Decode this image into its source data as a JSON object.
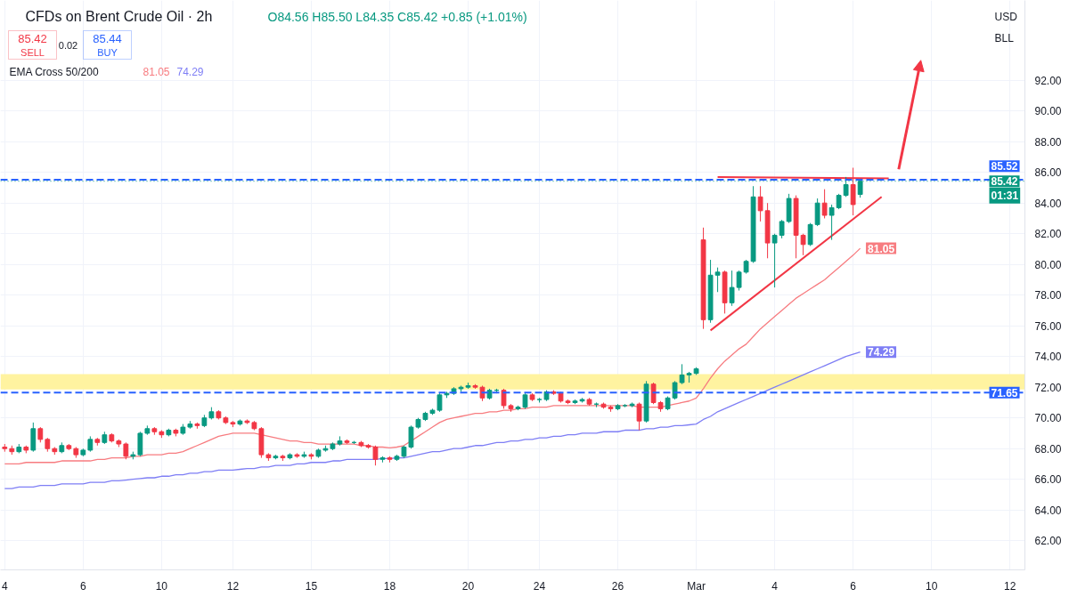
{
  "chart_data": {
    "type": "candlestick",
    "title": "CFDs on Brent Crude Oil · 2h",
    "subtitle": "O84.56 H85.50 L84.35 C85.42 +0.85 (+1.01%)",
    "annotations": [
      "85.42",
      "SELL",
      "0.02",
      "85.44",
      "BUY",
      "EMA Cross 50/200",
      "USD",
      "BLL",
      "01:31",
      "81.05",
      "74.29"
    ],
    "categories": [
      "4",
      null,
      null,
      null,
      null,
      null,
      null,
      null,
      null,
      null,
      null,
      "6",
      null,
      null,
      null,
      null,
      null,
      null,
      null,
      null,
      null,
      null,
      "10",
      null,
      null,
      null,
      null,
      null,
      null,
      null,
      null,
      null,
      "12",
      null,
      null,
      null,
      null,
      null,
      null,
      null,
      null,
      null,
      null,
      "15",
      null,
      null,
      null,
      null,
      null,
      null,
      null,
      null,
      null,
      null,
      "18",
      null,
      null,
      null,
      null,
      null,
      null,
      null,
      null,
      null,
      null,
      "20",
      null,
      null,
      null,
      null,
      null,
      null,
      null,
      null,
      null,
      "24",
      null,
      null,
      null,
      null,
      null,
      null,
      null,
      null,
      null,
      null,
      "26",
      null,
      null,
      null,
      null,
      null,
      null,
      null,
      null,
      null,
      null,
      "Mar",
      null,
      null,
      null,
      null,
      null,
      null,
      null,
      null,
      null,
      null,
      "4",
      null,
      null,
      null,
      null,
      null,
      null,
      null,
      null,
      null,
      null,
      "6",
      null,
      null,
      null,
      null,
      null,
      null,
      null,
      null,
      null,
      null,
      "10",
      null,
      null,
      null,
      null,
      null,
      null,
      null,
      null,
      null,
      null,
      "12",
      null,
      null
    ],
    "ohlc": [
      [
        68.1,
        68.3,
        67.8,
        68.0
      ],
      [
        68.0,
        68.2,
        67.6,
        67.8
      ],
      [
        67.8,
        68.3,
        67.7,
        68.1
      ],
      [
        68.1,
        68.2,
        67.7,
        67.9
      ],
      [
        67.9,
        69.7,
        67.8,
        69.3
      ],
      [
        69.3,
        69.4,
        68.4,
        68.6
      ],
      [
        68.6,
        68.7,
        67.8,
        68.0
      ],
      [
        68.0,
        68.1,
        67.6,
        67.8
      ],
      [
        67.8,
        68.4,
        67.7,
        68.2
      ],
      [
        68.2,
        68.3,
        67.9,
        68.0
      ],
      [
        68.0,
        68.1,
        67.4,
        67.6
      ],
      [
        67.6,
        68.0,
        67.5,
        67.9
      ],
      [
        67.9,
        68.8,
        67.8,
        68.6
      ],
      [
        68.6,
        68.7,
        68.2,
        68.4
      ],
      [
        68.4,
        69.1,
        68.3,
        68.9
      ],
      [
        68.9,
        69.0,
        68.4,
        68.5
      ],
      [
        68.5,
        68.6,
        68.1,
        68.3
      ],
      [
        68.3,
        68.4,
        67.3,
        67.5
      ],
      [
        67.5,
        67.8,
        67.3,
        67.6
      ],
      [
        67.6,
        69.1,
        67.5,
        69.0
      ],
      [
        69.0,
        69.5,
        68.9,
        69.3
      ],
      [
        69.3,
        69.4,
        68.9,
        69.1
      ],
      [
        69.1,
        69.2,
        68.7,
        68.9
      ],
      [
        68.9,
        69.3,
        68.8,
        69.2
      ],
      [
        69.2,
        69.3,
        68.8,
        69.0
      ],
      [
        69.0,
        69.6,
        68.9,
        69.4
      ],
      [
        69.4,
        69.8,
        69.3,
        69.6
      ],
      [
        69.6,
        69.7,
        69.3,
        69.5
      ],
      [
        69.5,
        70.2,
        69.4,
        70.0
      ],
      [
        70.0,
        70.7,
        69.9,
        70.4
      ],
      [
        70.4,
        70.5,
        69.9,
        70.0
      ],
      [
        70.0,
        70.1,
        69.6,
        69.7
      ],
      [
        69.7,
        69.8,
        69.4,
        69.6
      ],
      [
        69.6,
        69.9,
        69.5,
        69.8
      ],
      [
        69.8,
        69.9,
        69.6,
        69.7
      ],
      [
        69.7,
        69.8,
        69.2,
        69.3
      ],
      [
        69.3,
        69.4,
        67.4,
        67.6
      ],
      [
        67.6,
        67.7,
        67.2,
        67.4
      ],
      [
        67.4,
        67.6,
        67.3,
        67.5
      ],
      [
        67.5,
        67.6,
        67.2,
        67.4
      ],
      [
        67.4,
        67.7,
        67.3,
        67.6
      ],
      [
        67.6,
        67.7,
        67.4,
        67.5
      ],
      [
        67.5,
        67.8,
        67.4,
        67.6
      ],
      [
        67.6,
        67.7,
        67.3,
        67.5
      ],
      [
        67.5,
        68.0,
        67.4,
        67.9
      ],
      [
        67.9,
        68.2,
        67.8,
        68.0
      ],
      [
        68.0,
        68.4,
        67.9,
        68.3
      ],
      [
        68.3,
        68.8,
        68.2,
        68.5
      ],
      [
        68.5,
        68.6,
        68.3,
        68.4
      ],
      [
        68.4,
        68.5,
        68.3,
        68.4
      ],
      [
        68.4,
        68.5,
        68.1,
        68.2
      ],
      [
        68.2,
        68.3,
        68.0,
        68.1
      ],
      [
        68.1,
        68.2,
        66.9,
        67.3
      ],
      [
        67.3,
        67.5,
        67.1,
        67.4
      ],
      [
        67.4,
        67.5,
        67.1,
        67.3
      ],
      [
        67.3,
        67.6,
        67.2,
        67.5
      ],
      [
        67.5,
        68.2,
        67.4,
        68.1
      ],
      [
        68.1,
        69.5,
        68.0,
        69.4
      ],
      [
        69.4,
        70.0,
        69.3,
        69.9
      ],
      [
        69.9,
        70.4,
        69.8,
        70.3
      ],
      [
        70.3,
        70.6,
        70.2,
        70.5
      ],
      [
        70.5,
        71.6,
        70.4,
        71.5
      ],
      [
        71.5,
        71.7,
        71.3,
        71.6
      ],
      [
        71.6,
        72.0,
        71.5,
        71.9
      ],
      [
        71.9,
        72.1,
        71.7,
        72.0
      ],
      [
        72.0,
        72.3,
        71.9,
        72.1
      ],
      [
        72.1,
        72.2,
        71.9,
        72.0
      ],
      [
        72.0,
        72.1,
        71.1,
        71.3
      ],
      [
        71.3,
        71.9,
        71.2,
        71.8
      ],
      [
        71.8,
        71.9,
        71.6,
        71.8
      ],
      [
        71.8,
        71.9,
        70.6,
        70.8
      ],
      [
        70.8,
        70.9,
        70.4,
        70.6
      ],
      [
        70.6,
        70.8,
        70.5,
        70.7
      ],
      [
        70.7,
        71.6,
        70.6,
        71.5
      ],
      [
        71.5,
        71.6,
        71.1,
        71.2
      ],
      [
        71.2,
        71.3,
        71.0,
        71.2
      ],
      [
        71.2,
        71.8,
        71.1,
        71.7
      ],
      [
        71.7,
        71.8,
        71.5,
        71.6
      ],
      [
        71.6,
        71.7,
        71.0,
        71.1
      ],
      [
        71.1,
        71.2,
        70.9,
        71.0
      ],
      [
        71.0,
        71.2,
        70.9,
        71.1
      ],
      [
        71.1,
        71.3,
        71.0,
        71.2
      ],
      [
        71.2,
        71.3,
        70.8,
        70.9
      ],
      [
        70.9,
        71.0,
        70.7,
        70.9
      ],
      [
        70.9,
        71.0,
        70.6,
        70.7
      ],
      [
        70.7,
        70.8,
        70.4,
        70.6
      ],
      [
        70.6,
        70.9,
        70.5,
        70.8
      ],
      [
        70.8,
        70.9,
        70.7,
        70.8
      ],
      [
        70.8,
        71.0,
        70.7,
        70.9
      ],
      [
        70.9,
        71.0,
        69.2,
        69.8
      ],
      [
        69.8,
        72.4,
        69.7,
        72.2
      ],
      [
        72.2,
        72.3,
        70.9,
        71.0
      ],
      [
        71.0,
        71.1,
        70.4,
        70.6
      ],
      [
        70.6,
        71.4,
        70.5,
        71.3
      ],
      [
        71.3,
        72.4,
        71.2,
        72.3
      ],
      [
        72.3,
        73.5,
        72.2,
        72.8
      ],
      [
        72.8,
        73.0,
        72.3,
        72.9
      ],
      [
        72.9,
        73.3,
        72.8,
        73.2
      ],
      [
        81.6,
        82.4,
        75.8,
        76.4
      ],
      [
        76.4,
        80.3,
        76.2,
        79.3
      ],
      [
        79.3,
        79.8,
        78.2,
        79.5
      ],
      [
        79.5,
        79.6,
        76.8,
        77.5
      ],
      [
        77.5,
        79.6,
        77.3,
        78.5
      ],
      [
        78.5,
        79.6,
        78.3,
        79.5
      ],
      [
        79.5,
        80.3,
        79.4,
        80.2
      ],
      [
        80.2,
        85.1,
        80.1,
        84.4
      ],
      [
        84.4,
        85.1,
        82.8,
        83.5
      ],
      [
        83.5,
        84.0,
        80.4,
        81.4
      ],
      [
        81.4,
        82.0,
        78.5,
        81.9
      ],
      [
        81.9,
        82.9,
        81.7,
        82.8
      ],
      [
        82.8,
        84.6,
        82.7,
        84.3
      ],
      [
        84.3,
        84.5,
        80.4,
        81.9
      ],
      [
        81.9,
        82.0,
        80.6,
        81.3
      ],
      [
        81.3,
        82.7,
        81.2,
        82.6
      ],
      [
        82.6,
        84.3,
        82.5,
        84.0
      ],
      [
        84.0,
        84.9,
        83.0,
        83.2
      ],
      [
        83.2,
        83.9,
        81.6,
        83.7
      ],
      [
        83.7,
        84.6,
        83.6,
        84.5
      ],
      [
        84.5,
        85.7,
        84.4,
        85.2
      ],
      [
        85.2,
        86.3,
        83.2,
        83.9
      ],
      [
        84.56,
        85.5,
        84.35,
        85.42
      ],
      null,
      null,
      null,
      null,
      null,
      null,
      null,
      null,
      null,
      null,
      null,
      null,
      null,
      null,
      null,
      null,
      null,
      null,
      null,
      null,
      null,
      null,
      null
    ],
    "series": [
      {
        "type": "line",
        "color": "#f77c80",
        "values": [
          67.0,
          67.0,
          67.0,
          67.1,
          67.1,
          67.1,
          67.1,
          67.1,
          67.2,
          67.2,
          67.2,
          67.2,
          67.2,
          67.3,
          67.3,
          67.4,
          67.4,
          67.4,
          67.5,
          67.5,
          67.6,
          67.6,
          67.6,
          67.7,
          67.7,
          67.8,
          68.0,
          68.2,
          68.4,
          68.6,
          68.8,
          68.9,
          69.0,
          69.0,
          69.0,
          69.0,
          68.9,
          68.8,
          68.7,
          68.6,
          68.5,
          68.5,
          68.4,
          68.4,
          68.3,
          68.3,
          68.3,
          68.3,
          68.3,
          68.3,
          68.2,
          68.2,
          68.1,
          68.1,
          68.05,
          68.1,
          68.2,
          68.5,
          68.8,
          69.1,
          69.4,
          69.7,
          69.9,
          70.0,
          70.1,
          70.2,
          70.3,
          70.3,
          70.4,
          70.4,
          70.5,
          70.5,
          70.6,
          70.6,
          70.7,
          70.7,
          70.7,
          70.8,
          70.8,
          70.8,
          70.8,
          70.8,
          70.8,
          70.8,
          70.8,
          70.8,
          70.8,
          70.8,
          70.8,
          70.7,
          70.7,
          70.7,
          70.7,
          70.8,
          70.9,
          71.0,
          71.1,
          71.3,
          71.9,
          72.6,
          73.2,
          73.7,
          74.1,
          74.5,
          74.8,
          75.3,
          75.8,
          76.2,
          76.6,
          77.0,
          77.4,
          77.8,
          78.1,
          78.4,
          78.7,
          79.0,
          79.4,
          79.8,
          80.2,
          80.6,
          81.05,
          null,
          null,
          null,
          null,
          null,
          null,
          null,
          null,
          null,
          null,
          null,
          null,
          null,
          null,
          null,
          null,
          null,
          null,
          null,
          null,
          null,
          null,
          null
        ],
        "value_labels": [
          null,
          null,
          null,
          null,
          null,
          null,
          null,
          null,
          null,
          null,
          null,
          null,
          null,
          null,
          null,
          null,
          null,
          null,
          null,
          null,
          null,
          null,
          null,
          null,
          null,
          null,
          null,
          null,
          null,
          null,
          null,
          null,
          null,
          null,
          null,
          null,
          null,
          null,
          null,
          null,
          null,
          null,
          null,
          null,
          null,
          null,
          null,
          null,
          null,
          null,
          null,
          null,
          null,
          null,
          null,
          null,
          null,
          null,
          null,
          null,
          null,
          null,
          null,
          null,
          null,
          null,
          null,
          null,
          null,
          null,
          null,
          null,
          null,
          null,
          null,
          null,
          null,
          null,
          null,
          null,
          null,
          null,
          null,
          null,
          null,
          null,
          null,
          null,
          null,
          null,
          null,
          null,
          null,
          null,
          null,
          null,
          null,
          null,
          null,
          null,
          null,
          null,
          null,
          null,
          null,
          null,
          null,
          null,
          null,
          null,
          null,
          null,
          null,
          null,
          null,
          null,
          null,
          null,
          null,
          null,
          "81.05",
          null,
          null,
          null,
          null,
          null,
          null,
          null,
          null,
          null,
          null,
          null,
          null,
          null,
          null,
          null,
          null,
          null,
          null,
          null,
          null,
          null,
          null,
          null
        ]
      },
      {
        "type": "line",
        "color": "#7e7ef5",
        "values": [
          65.4,
          65.4,
          65.5,
          65.5,
          65.5,
          65.6,
          65.6,
          65.6,
          65.7,
          65.7,
          65.7,
          65.7,
          65.8,
          65.8,
          65.8,
          65.9,
          65.9,
          65.95,
          66.0,
          66.05,
          66.1,
          66.1,
          66.2,
          66.2,
          66.3,
          66.3,
          66.4,
          66.4,
          66.5,
          66.5,
          66.6,
          66.6,
          66.6,
          66.65,
          66.7,
          66.7,
          66.8,
          66.8,
          66.9,
          66.9,
          66.9,
          67.0,
          67.0,
          67.1,
          67.1,
          67.1,
          67.2,
          67.2,
          67.3,
          67.3,
          67.3,
          67.3,
          67.3,
          67.35,
          67.35,
          67.4,
          67.4,
          67.5,
          67.6,
          67.7,
          67.8,
          67.8,
          67.9,
          68.0,
          68.0,
          68.1,
          68.2,
          68.2,
          68.3,
          68.4,
          68.4,
          68.5,
          68.5,
          68.6,
          68.6,
          68.7,
          68.7,
          68.8,
          68.8,
          68.9,
          68.9,
          69.0,
          69.0,
          69.0,
          69.1,
          69.1,
          69.1,
          69.2,
          69.2,
          69.2,
          69.3,
          69.3,
          69.4,
          69.4,
          69.5,
          69.5,
          69.55,
          69.6,
          69.9,
          70.1,
          70.4,
          70.6,
          70.8,
          71.0,
          71.2,
          71.4,
          71.6,
          71.8,
          72.0,
          72.2,
          72.4,
          72.6,
          72.8,
          73.0,
          73.2,
          73.4,
          73.6,
          73.8,
          74.0,
          74.15,
          74.29,
          null,
          null,
          null,
          null,
          null,
          null,
          null,
          null,
          null,
          null,
          null,
          null,
          null,
          null,
          null,
          null,
          null,
          null,
          null,
          null,
          null,
          null,
          null
        ],
        "value_labels": [
          null,
          null,
          null,
          null,
          null,
          null,
          null,
          null,
          null,
          null,
          null,
          null,
          null,
          null,
          null,
          null,
          null,
          null,
          null,
          null,
          null,
          null,
          null,
          null,
          null,
          null,
          null,
          null,
          null,
          null,
          null,
          null,
          null,
          null,
          null,
          null,
          null,
          null,
          null,
          null,
          null,
          null,
          null,
          null,
          null,
          null,
          null,
          null,
          null,
          null,
          null,
          null,
          null,
          null,
          null,
          null,
          null,
          null,
          null,
          null,
          null,
          null,
          null,
          null,
          null,
          null,
          null,
          null,
          null,
          null,
          null,
          null,
          null,
          null,
          null,
          null,
          null,
          null,
          null,
          null,
          null,
          null,
          null,
          null,
          null,
          null,
          null,
          null,
          null,
          null,
          null,
          null,
          null,
          null,
          null,
          null,
          null,
          null,
          null,
          null,
          null,
          null,
          null,
          null,
          null,
          null,
          null,
          null,
          null,
          null,
          null,
          null,
          null,
          null,
          null,
          null,
          null,
          null,
          null,
          null,
          "74.29",
          null,
          null,
          null,
          null,
          null,
          null,
          null,
          null,
          null,
          null,
          null,
          null,
          null,
          null,
          null,
          null,
          null,
          null,
          null,
          null,
          null,
          null,
          null
        ]
      },
      {
        "type": "line",
        "color": "#f23645",
        "values": [
          null,
          null,
          null,
          null,
          null,
          null,
          null,
          null,
          null,
          null,
          null,
          null,
          null,
          null,
          null,
          null,
          null,
          null,
          null,
          null,
          null,
          null,
          null,
          null,
          null,
          null,
          null,
          null,
          null,
          null,
          null,
          null,
          null,
          null,
          null,
          null,
          null,
          null,
          null,
          null,
          null,
          null,
          null,
          null,
          null,
          null,
          null,
          null,
          null,
          null,
          null,
          null,
          null,
          null,
          null,
          null,
          null,
          null,
          null,
          null,
          null,
          null,
          null,
          null,
          null,
          null,
          null,
          null,
          null,
          null,
          null,
          null,
          null,
          null,
          null,
          null,
          null,
          null,
          null,
          null,
          null,
          null,
          null,
          null,
          null,
          null,
          null,
          null,
          null,
          null,
          null,
          null,
          null,
          null,
          null,
          null,
          null,
          null,
          null,
          75.7,
          null,
          null,
          null,
          null,
          null,
          null,
          null,
          null,
          null,
          null,
          null,
          null,
          null,
          null,
          null,
          null,
          null,
          null,
          null,
          null,
          null,
          null,
          null,
          84.4,
          null,
          null,
          null,
          null,
          null,
          null,
          null,
          null,
          null,
          null,
          null,
          null,
          null,
          null,
          null,
          null,
          null,
          null,
          null,
          null
        ]
      },
      {
        "type": "line",
        "color": "#f23645",
        "values": [
          null,
          null,
          null,
          null,
          null,
          null,
          null,
          null,
          null,
          null,
          null,
          null,
          null,
          null,
          null,
          null,
          null,
          null,
          null,
          null,
          null,
          null,
          null,
          null,
          null,
          null,
          null,
          null,
          null,
          null,
          null,
          null,
          null,
          null,
          null,
          null,
          null,
          null,
          null,
          null,
          null,
          null,
          null,
          null,
          null,
          null,
          null,
          null,
          null,
          null,
          null,
          null,
          null,
          null,
          null,
          null,
          null,
          null,
          null,
          null,
          null,
          null,
          null,
          null,
          null,
          null,
          null,
          null,
          null,
          null,
          null,
          null,
          null,
          null,
          null,
          null,
          null,
          null,
          null,
          null,
          null,
          null,
          null,
          null,
          null,
          null,
          null,
          null,
          null,
          null,
          null,
          null,
          null,
          null,
          null,
          null,
          null,
          null,
          null,
          null,
          85.7,
          null,
          null,
          null,
          null,
          null,
          null,
          null,
          null,
          null,
          null,
          null,
          null,
          null,
          null,
          null,
          null,
          null,
          null,
          null,
          null,
          null,
          null,
          null,
          85.6,
          null,
          null,
          null,
          null,
          null,
          null,
          null,
          null,
          null,
          null,
          null,
          null,
          null,
          null,
          null,
          null,
          null,
          null,
          null
        ]
      }
    ],
    "bands": [
      {
        "axis": "y",
        "from": 71.85,
        "to": 72.85,
        "color": "#fff3a0"
      }
    ],
    "ref_lines": [
      {
        "axis": "y",
        "value": 85.52,
        "label": "85.52",
        "color": "#2962ff",
        "line_style": "dashed"
      },
      {
        "axis": "y",
        "value": 85.42,
        "label": "85.42",
        "color": "#089981",
        "line_style": "dotted"
      },
      {
        "axis": "y",
        "value": 71.65,
        "label": "71.65",
        "color": "#2962ff",
        "line_style": "dashed"
      }
    ],
    "ylim": [
      60.1,
      97.2
    ],
    "yticks": [
      {
        "value": 62,
        "label": "62.00"
      },
      {
        "value": 64,
        "label": "64.00"
      },
      {
        "value": 66,
        "label": "66.00"
      },
      {
        "value": 68,
        "label": "68.00"
      },
      {
        "value": 70,
        "label": "70.00"
      },
      {
        "value": 72,
        "label": "72.00"
      },
      {
        "value": 74,
        "label": "74.00"
      },
      {
        "value": 76,
        "label": "76.00"
      },
      {
        "value": 78,
        "label": "78.00"
      },
      {
        "value": 80,
        "label": "80.00"
      },
      {
        "value": 82,
        "label": "82.00"
      },
      {
        "value": 84,
        "label": "84.00"
      },
      {
        "value": 86,
        "label": "86.00"
      },
      {
        "value": 88,
        "label": "88.00"
      },
      {
        "value": 90,
        "label": "90.00"
      },
      {
        "value": 92,
        "label": "92.00"
      }
    ],
    "grid": true
  }
}
